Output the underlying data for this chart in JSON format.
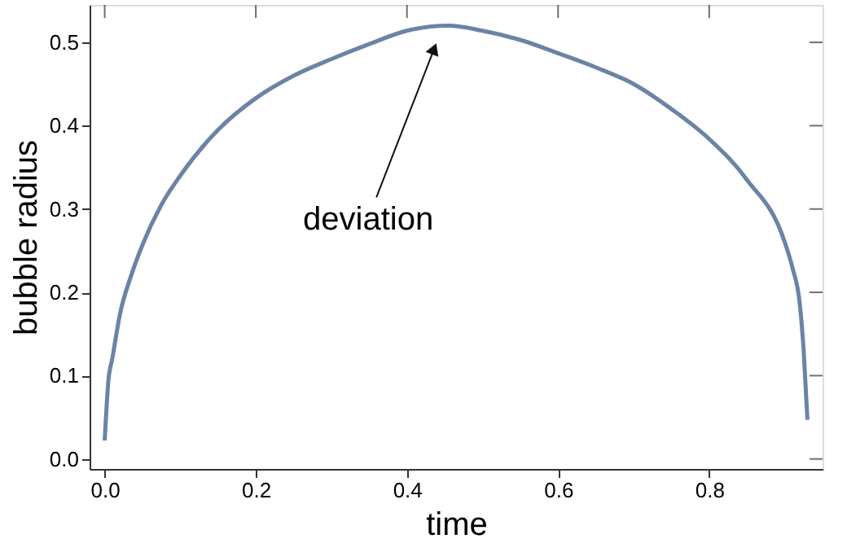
{
  "chart_data": {
    "type": "line",
    "xlabel": "time",
    "ylabel": "bubble radius",
    "x": [
      0.0,
      0.005,
      0.01,
      0.02,
      0.035,
      0.05,
      0.075,
      0.1,
      0.15,
      0.2,
      0.25,
      0.3,
      0.35,
      0.4,
      0.455,
      0.5,
      0.55,
      0.6,
      0.65,
      0.7,
      0.75,
      0.8,
      0.85,
      0.9,
      0.91,
      0.92,
      0.925,
      0.93
    ],
    "series": [
      {
        "color": "#6b83a6",
        "values": [
          0.022,
          0.095,
          0.12,
          0.173,
          0.22,
          0.257,
          0.305,
          0.34,
          0.395,
          0.433,
          0.46,
          0.48,
          0.498,
          0.514,
          0.52,
          0.514,
          0.503,
          0.487,
          0.47,
          0.45,
          0.42,
          0.384,
          0.335,
          0.26,
          0.23,
          0.185,
          0.13,
          0.047
        ]
      }
    ],
    "xlim": [
      -0.02,
      0.95
    ],
    "ylim": [
      -0.012,
      0.545
    ],
    "xticks": [
      {
        "value": 0,
        "label": "0.0"
      },
      0.2,
      0.4,
      0.6,
      0.8
    ],
    "yticks": [
      {
        "value": 0,
        "label": "0.0"
      },
      0.1,
      0.2,
      0.3,
      0.4,
      0.5
    ],
    "grid": false,
    "marker": "none",
    "line_style": "solid",
    "annotations": [
      {
        "text": "deviation",
        "x": 0.435,
        "y": 0.49
      }
    ]
  }
}
